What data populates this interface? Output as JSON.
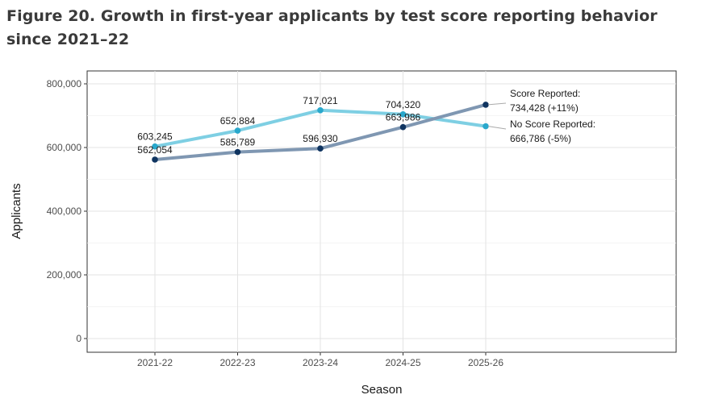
{
  "chart_data": {
    "type": "line",
    "title": "Figure 20. Growth in first-year applicants by test score reporting behavior since 2021–22",
    "xlabel": "Season",
    "ylabel": "Applicants",
    "categories": [
      "2021-22",
      "2022-23",
      "2023-24",
      "2024-25",
      "2025-26"
    ],
    "ylim": [
      0,
      800000
    ],
    "yticks": [
      0,
      200000,
      400000,
      600000,
      800000
    ],
    "ytick_labels": [
      "0",
      "200,000",
      "400,000",
      "600,000",
      "800,000"
    ],
    "grid": true,
    "series": [
      {
        "name": "No Score Reported",
        "color": "#7ecfe3",
        "point_color": "#29a8cc",
        "values": [
          603245,
          652884,
          717021,
          704320,
          666786
        ],
        "value_labels": [
          "603,245",
          "652,884",
          "717,021",
          "704,320",
          "666,786"
        ],
        "end_label_line1": "No Score Reported:",
        "end_label_line2": "666,786 (-5%)"
      },
      {
        "name": "Score Reported",
        "color": "#7f97b2",
        "point_color": "#0f3460",
        "values": [
          562054,
          585789,
          596930,
          663986,
          734428
        ],
        "value_labels": [
          "562,054",
          "585,789",
          "596,930",
          "663,986",
          "734,428"
        ],
        "end_label_line1": "Score Reported:",
        "end_label_line2": "734,428 (+11%)"
      }
    ]
  }
}
